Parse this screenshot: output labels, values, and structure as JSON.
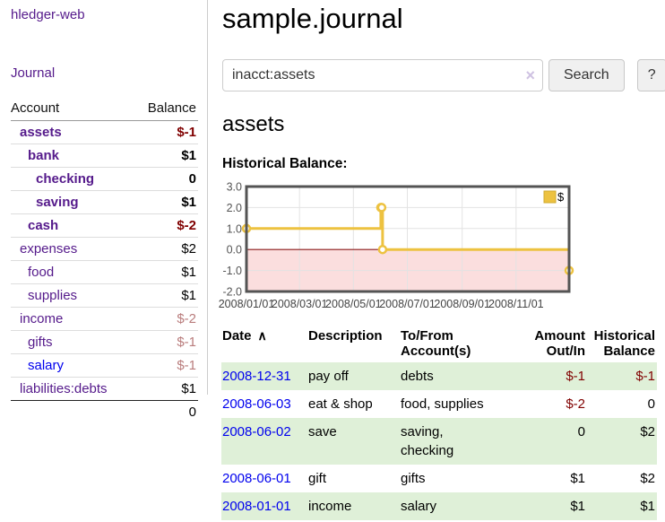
{
  "app": {
    "title": "hledger-web",
    "nav_journal": "Journal"
  },
  "sidebar": {
    "headers": {
      "account": "Account",
      "balance": "Balance"
    },
    "accounts": [
      {
        "label": "assets",
        "depth": 1,
        "bold": true,
        "link": "purple",
        "balance": "$-1",
        "tone": "neg-strong"
      },
      {
        "label": "bank",
        "depth": 2,
        "bold": true,
        "link": "purple",
        "balance": "$1",
        "tone": "pos"
      },
      {
        "label": "checking",
        "depth": 3,
        "bold": true,
        "link": "purple",
        "balance": "0",
        "tone": "pos"
      },
      {
        "label": "saving",
        "depth": 3,
        "bold": true,
        "link": "purple",
        "balance": "$1",
        "tone": "pos"
      },
      {
        "label": "cash",
        "depth": 2,
        "bold": true,
        "link": "purple",
        "balance": "$-2",
        "tone": "neg-strong"
      },
      {
        "label": "expenses",
        "depth": 1,
        "bold": false,
        "link": "purple",
        "balance": "$2",
        "tone": "pos"
      },
      {
        "label": "food",
        "depth": 2,
        "bold": false,
        "link": "purple",
        "balance": "$1",
        "tone": "pos"
      },
      {
        "label": "supplies",
        "depth": 2,
        "bold": false,
        "link": "purple",
        "balance": "$1",
        "tone": "pos"
      },
      {
        "label": "income",
        "depth": 1,
        "bold": false,
        "link": "purple",
        "balance": "$-2",
        "tone": "neg-soft"
      },
      {
        "label": "gifts",
        "depth": 2,
        "bold": false,
        "link": "purple",
        "balance": "$-1",
        "tone": "neg-soft"
      },
      {
        "label": "salary",
        "depth": 2,
        "bold": false,
        "link": "blue",
        "balance": "$-1",
        "tone": "neg-soft"
      },
      {
        "label": "liabilities:debts",
        "depth": 1,
        "bold": false,
        "link": "purple",
        "balance": "$1",
        "tone": "pos"
      }
    ],
    "total": "0"
  },
  "main": {
    "title": "sample.journal",
    "search": {
      "query": "inacct:assets",
      "clear_icon": "×",
      "search_button": "Search",
      "help_button": "?"
    },
    "account_heading": "assets",
    "chart_label": "Historical Balance:"
  },
  "chart_data": {
    "type": "line",
    "step": "step-after",
    "title": "Historical Balance",
    "series": [
      {
        "name": "$",
        "color": "#edc240",
        "points": [
          [
            "2008-01-01",
            1
          ],
          [
            "2008-06-01",
            2
          ],
          [
            "2008-06-02",
            2
          ],
          [
            "2008-06-03",
            0
          ],
          [
            "2008-12-31",
            -1
          ]
        ]
      }
    ],
    "ylim": [
      -2.0,
      3.0
    ],
    "yticks": [
      "3.0",
      "2.0",
      "1.0",
      "0.0",
      "-1.0",
      "-2.0"
    ],
    "xticks": [
      "2008/01/01",
      "2008/03/01",
      "2008/05/01",
      "2008/07/01",
      "2008/09/01",
      "2008/11/01"
    ],
    "grid": true,
    "legend": {
      "label": "$",
      "position": "top-right"
    },
    "negative_region_fill": "#fbdede",
    "zero_line_color": "#8b1a1a",
    "border_color": "#545454",
    "axis_text_color": "#545454"
  },
  "register": {
    "headers": {
      "date": "Date",
      "sort_indicator": "∧",
      "description": "Description",
      "accounts": "To/From Account(s)",
      "amount": "Amount Out/In",
      "balance": "Historical Balance"
    },
    "rows": [
      {
        "date": "2008-12-31",
        "description": "pay off",
        "accounts": "debts",
        "amount": "$-1",
        "amount_negative": true,
        "balance": "$-1",
        "balance_negative": true
      },
      {
        "date": "2008-06-03",
        "description": "eat & shop",
        "accounts": "food, supplies",
        "amount": "$-2",
        "amount_negative": true,
        "balance": "0",
        "balance_negative": false
      },
      {
        "date": "2008-06-02",
        "description": "save",
        "accounts": "saving,\nchecking",
        "amount": "0",
        "amount_negative": false,
        "balance": "$2",
        "balance_negative": false
      },
      {
        "date": "2008-06-01",
        "description": "gift",
        "accounts": "gifts",
        "amount": "$1",
        "amount_negative": false,
        "balance": "$2",
        "balance_negative": false
      },
      {
        "date": "2008-01-01",
        "description": "income",
        "accounts": "salary",
        "amount": "$1",
        "amount_negative": false,
        "balance": "$1",
        "balance_negative": false
      }
    ]
  },
  "colors": {
    "link_purple": "#551a8b",
    "link_blue": "#0000ee",
    "negative_strong": "#800000",
    "negative_soft": "#b97c7c",
    "row_stripe_green": "#dff0d8",
    "chart_line_gold": "#edc240"
  }
}
